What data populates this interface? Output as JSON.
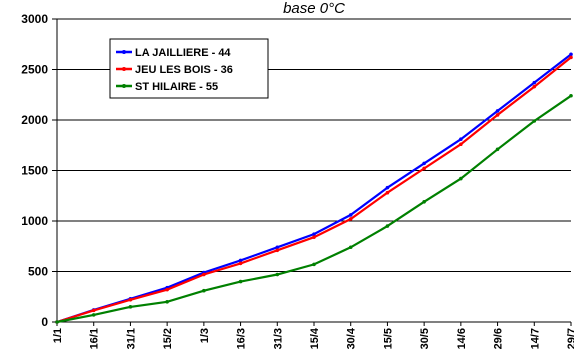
{
  "chart_data": {
    "type": "line",
    "title": "base 0°C",
    "xlabel": "",
    "ylabel": "",
    "ylim": [
      0,
      3000
    ],
    "yticks": [
      "0",
      "500",
      "1000",
      "1500",
      "2000",
      "2500",
      "3000"
    ],
    "x_categories": [
      "1/1",
      "16/1",
      "31/1",
      "15/2",
      "1/3",
      "16/3",
      "31/3",
      "15/4",
      "30/4",
      "15/5",
      "30/5",
      "14/6",
      "29/6",
      "14/7",
      "29/7"
    ],
    "grid": "horizontal",
    "legend_position": "top-left",
    "series": [
      {
        "name": "LA JAILLIERE - 44",
        "color": "#0000ff",
        "values": [
          0,
          120,
          230,
          340,
          490,
          610,
          740,
          870,
          1060,
          1330,
          1570,
          1810,
          2090,
          2370,
          2650
        ]
      },
      {
        "name": "JEU LES BOIS - 36",
        "color": "#ff0000",
        "values": [
          0,
          115,
          220,
          320,
          470,
          580,
          710,
          840,
          1020,
          1280,
          1520,
          1760,
          2050,
          2330,
          2620
        ]
      },
      {
        "name": "ST HILAIRE - 55",
        "color": "#008000",
        "values": [
          0,
          70,
          150,
          200,
          310,
          400,
          470,
          570,
          740,
          950,
          1190,
          1420,
          1710,
          1990,
          2240
        ]
      }
    ]
  }
}
